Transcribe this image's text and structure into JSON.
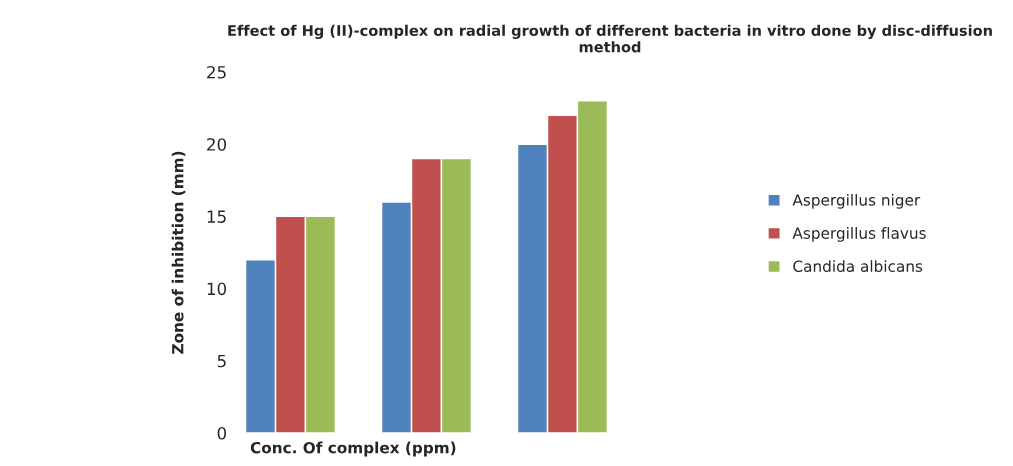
{
  "chart_data": {
    "type": "bar",
    "title": "Effect of Hg (II)-complex on radial growth of different bacteria in vitro done by disc-diffusion method",
    "xlabel": "Conc. Of complex (ppm)",
    "ylabel": "Zone of inhibition (mm)",
    "categories": [
      null,
      null,
      null
    ],
    "series": [
      {
        "name": "Aspergillus niger",
        "color": "#4f81bd",
        "values": [
          12,
          16,
          20
        ]
      },
      {
        "name": "Aspergillus flavus",
        "color": "#c0504d",
        "values": [
          15,
          19,
          22
        ]
      },
      {
        "name": "Candida albicans",
        "color": "#9bbb59",
        "values": [
          15,
          19,
          23
        ]
      }
    ],
    "ylim": [
      0,
      25
    ],
    "yticks": [
      0,
      5,
      10,
      15,
      20,
      25
    ],
    "grid": false,
    "legend": "right"
  }
}
